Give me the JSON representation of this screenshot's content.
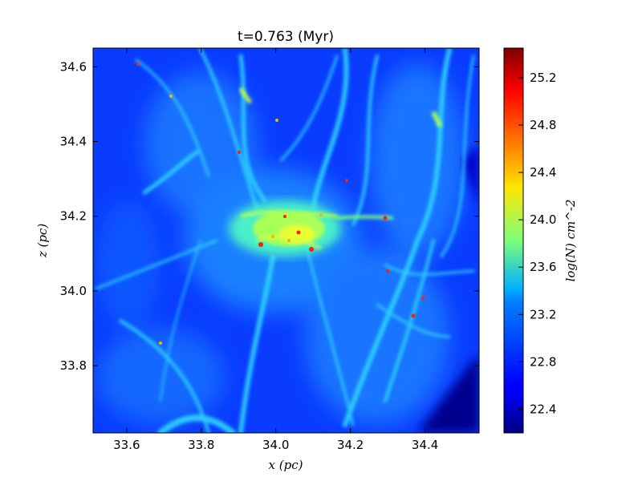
{
  "chart_data": {
    "type": "heatmap",
    "title": "t=0.763 (Myr)",
    "xlabel": "x (pc)",
    "ylabel": "z (pc)",
    "xlim": [
      33.51,
      34.545
    ],
    "ylim": [
      33.62,
      34.65
    ],
    "xticks": [
      33.6,
      33.8,
      34.0,
      34.2,
      34.4
    ],
    "xtick_labels": [
      "33.6",
      "33.8",
      "34.0",
      "34.2",
      "34.4"
    ],
    "yticks": [
      33.8,
      34.0,
      34.2,
      34.4,
      34.6
    ],
    "ytick_labels": [
      "33.8",
      "34.0",
      "34.2",
      "34.4",
      "34.6"
    ],
    "colormap": "jet",
    "colorbar": {
      "label": "log(N) cm^-2",
      "range": [
        22.2,
        25.45
      ],
      "ticks": [
        22.4,
        22.8,
        23.2,
        23.6,
        24.0,
        24.4,
        24.8,
        25.2
      ],
      "tick_labels": [
        "22.4",
        "22.8",
        "23.2",
        "23.6",
        "24.0",
        "24.4",
        "24.8",
        "25.2"
      ]
    },
    "grid": false
  }
}
